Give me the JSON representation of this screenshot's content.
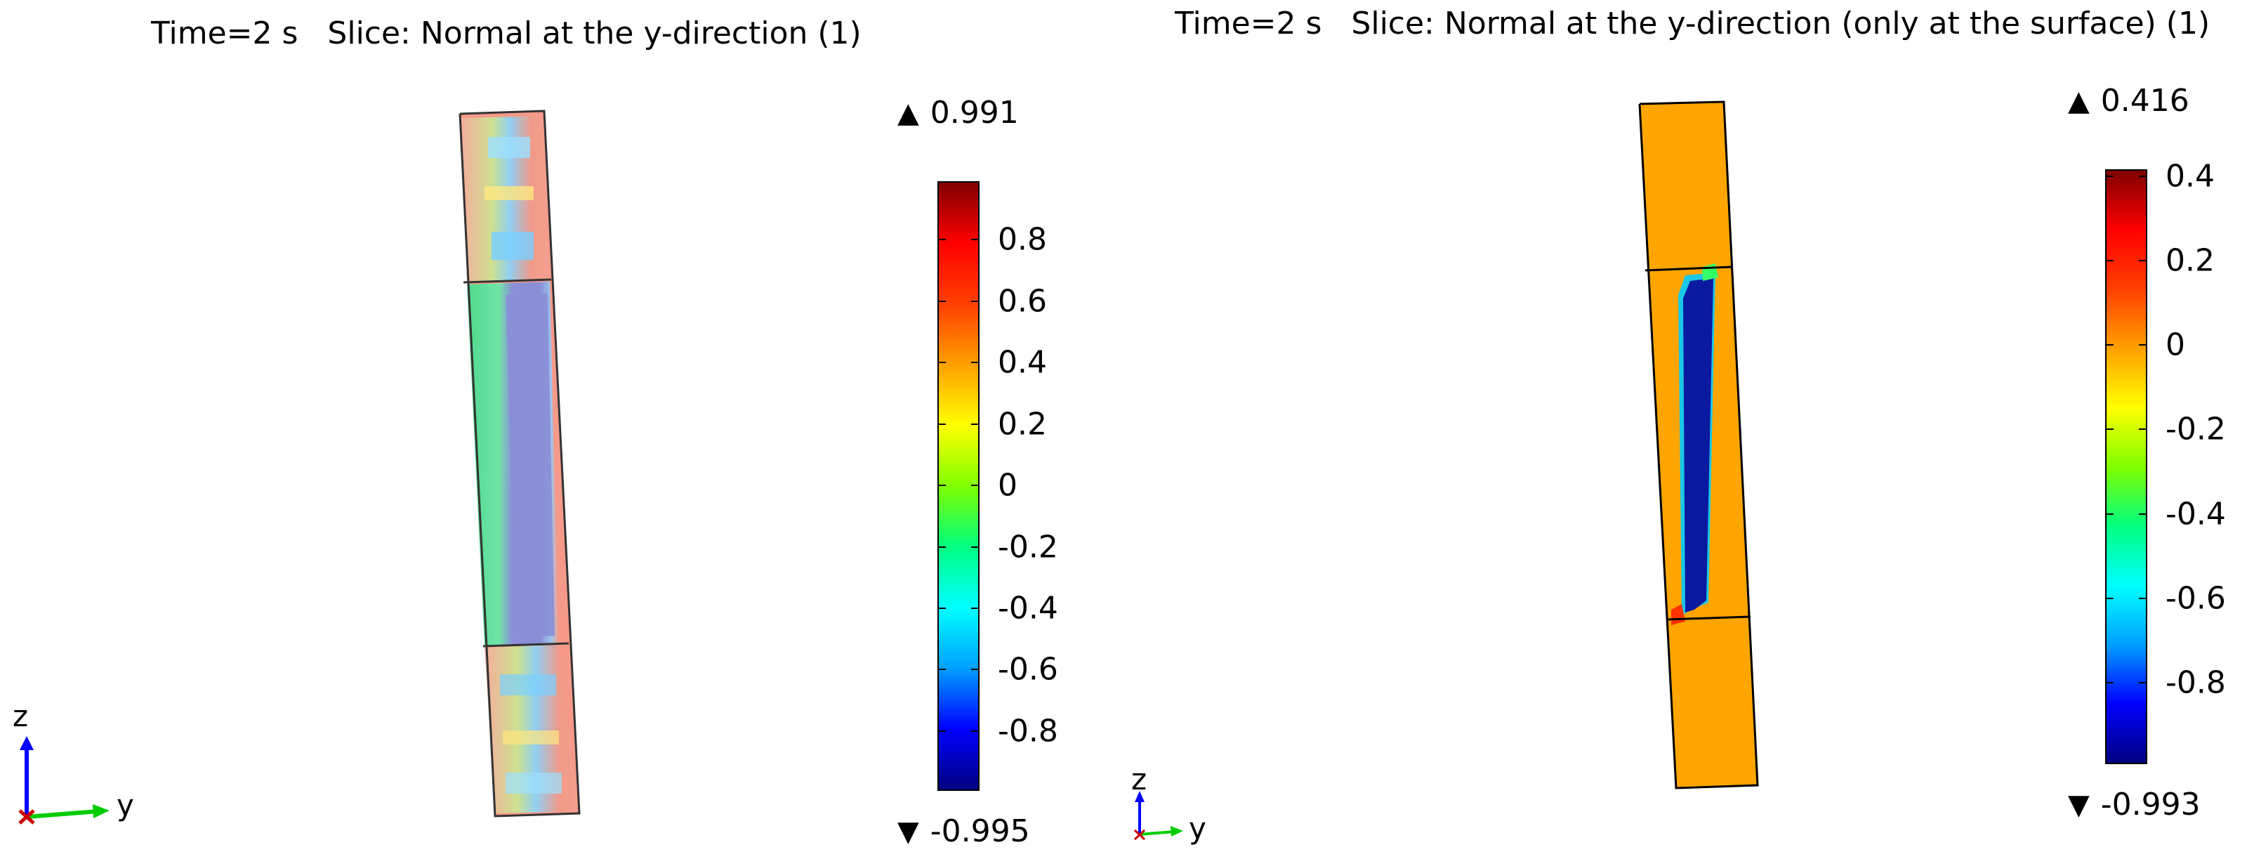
{
  "chart_data": [
    {
      "type": "heatmap",
      "title": "Time=2 s   Slice: Normal at the y-direction (1)",
      "colorbar": {
        "max_label": "0.991",
        "min_label": "-0.995",
        "max": 0.991,
        "min": -0.995,
        "range": [
          -0.995,
          0.991
        ],
        "ticks": [
          "0.8",
          "0.6",
          "0.4",
          "0.2",
          "0",
          "-0.2",
          "-0.4",
          "-0.6",
          "-0.8"
        ],
        "tick_values": [
          0.8,
          0.6,
          0.4,
          0.2,
          0,
          -0.2,
          -0.4,
          -0.6,
          -0.8
        ],
        "colormap": [
          "#000080",
          "#0000ff",
          "#00a0ff",
          "#00ffff",
          "#00ff80",
          "#80ff00",
          "#ffff00",
          "#ffa000",
          "#ff4000",
          "#ff0000",
          "#800000"
        ]
      },
      "axes_triad": {
        "z_label": "z",
        "y_label": "y"
      }
    },
    {
      "type": "heatmap",
      "title": "Time=2 s   Slice: Normal at the y-direction (only at the surface) (1)",
      "colorbar": {
        "max_label": "0.416",
        "min_label": "-0.993",
        "max": 0.416,
        "min": -0.993,
        "range": [
          -0.993,
          0.416
        ],
        "ticks": [
          "0.4",
          "0.2",
          "0",
          "-0.2",
          "-0.4",
          "-0.6",
          "-0.8"
        ],
        "tick_values": [
          0.4,
          0.2,
          0,
          -0.2,
          -0.4,
          -0.6,
          -0.8
        ],
        "colormap": [
          "#000080",
          "#0000ff",
          "#00a0ff",
          "#00ffff",
          "#00ff80",
          "#80ff00",
          "#ffff00",
          "#ffa000",
          "#ff4000",
          "#ff0000",
          "#800000"
        ]
      },
      "axes_triad": {
        "z_label": "z",
        "y_label": "y"
      }
    }
  ],
  "colors": {
    "left_body_top": "#f58a80",
    "left_body_mid_green": "#52e08c",
    "left_body_mid_blue": "#8a8ed6",
    "right_body": "#ffa500",
    "right_slot": "#0a1aa0",
    "axis_z": "#0000ff",
    "axis_y": "#00cc00",
    "axis_x": "#ff0000"
  }
}
